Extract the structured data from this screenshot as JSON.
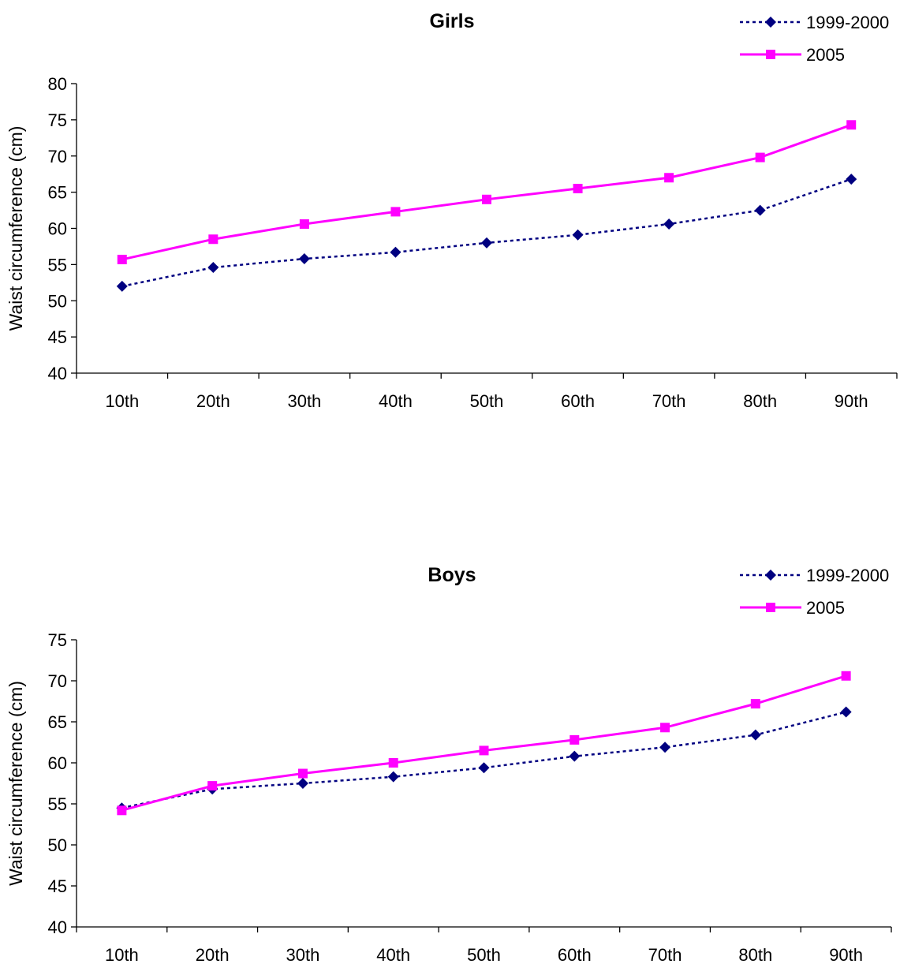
{
  "chart_data": [
    {
      "type": "line",
      "title": "Girls",
      "xlabel": "",
      "ylabel": "Waist circumference (cm)",
      "categories": [
        "10th",
        "20th",
        "30th",
        "40th",
        "50th",
        "60th",
        "70th",
        "80th",
        "90th"
      ],
      "ylim": [
        40,
        80
      ],
      "yticks": [
        40,
        45,
        50,
        55,
        60,
        65,
        70,
        75,
        80
      ],
      "grid": false,
      "legend_position": "top-right",
      "series": [
        {
          "name": "1999-2000",
          "values": [
            52.0,
            54.6,
            55.8,
            56.7,
            58.0,
            59.1,
            60.6,
            62.5,
            66.8
          ],
          "color": "#000080",
          "line_style": "dotted",
          "marker": "diamond"
        },
        {
          "name": "2005",
          "values": [
            55.7,
            58.5,
            60.6,
            62.3,
            64.0,
            65.5,
            67.0,
            69.8,
            74.3
          ],
          "color": "#FF00FF",
          "line_style": "solid",
          "marker": "square"
        }
      ]
    },
    {
      "type": "line",
      "title": "Boys",
      "xlabel": "",
      "ylabel": "Waist circumference (cm)",
      "categories": [
        "10th",
        "20th",
        "30th",
        "40th",
        "50th",
        "60th",
        "70th",
        "80th",
        "90th"
      ],
      "ylim": [
        40,
        75
      ],
      "yticks": [
        40,
        45,
        50,
        55,
        60,
        65,
        70,
        75
      ],
      "grid": false,
      "legend_position": "top-right",
      "series": [
        {
          "name": "1999-2000",
          "values": [
            54.5,
            56.8,
            57.5,
            58.3,
            59.4,
            60.8,
            61.9,
            63.4,
            66.2
          ],
          "color": "#000080",
          "line_style": "dotted",
          "marker": "diamond"
        },
        {
          "name": "2005",
          "values": [
            54.2,
            57.2,
            58.7,
            60.0,
            61.5,
            62.8,
            64.3,
            67.2,
            70.6
          ],
          "color": "#FF00FF",
          "line_style": "solid",
          "marker": "square"
        }
      ]
    }
  ]
}
